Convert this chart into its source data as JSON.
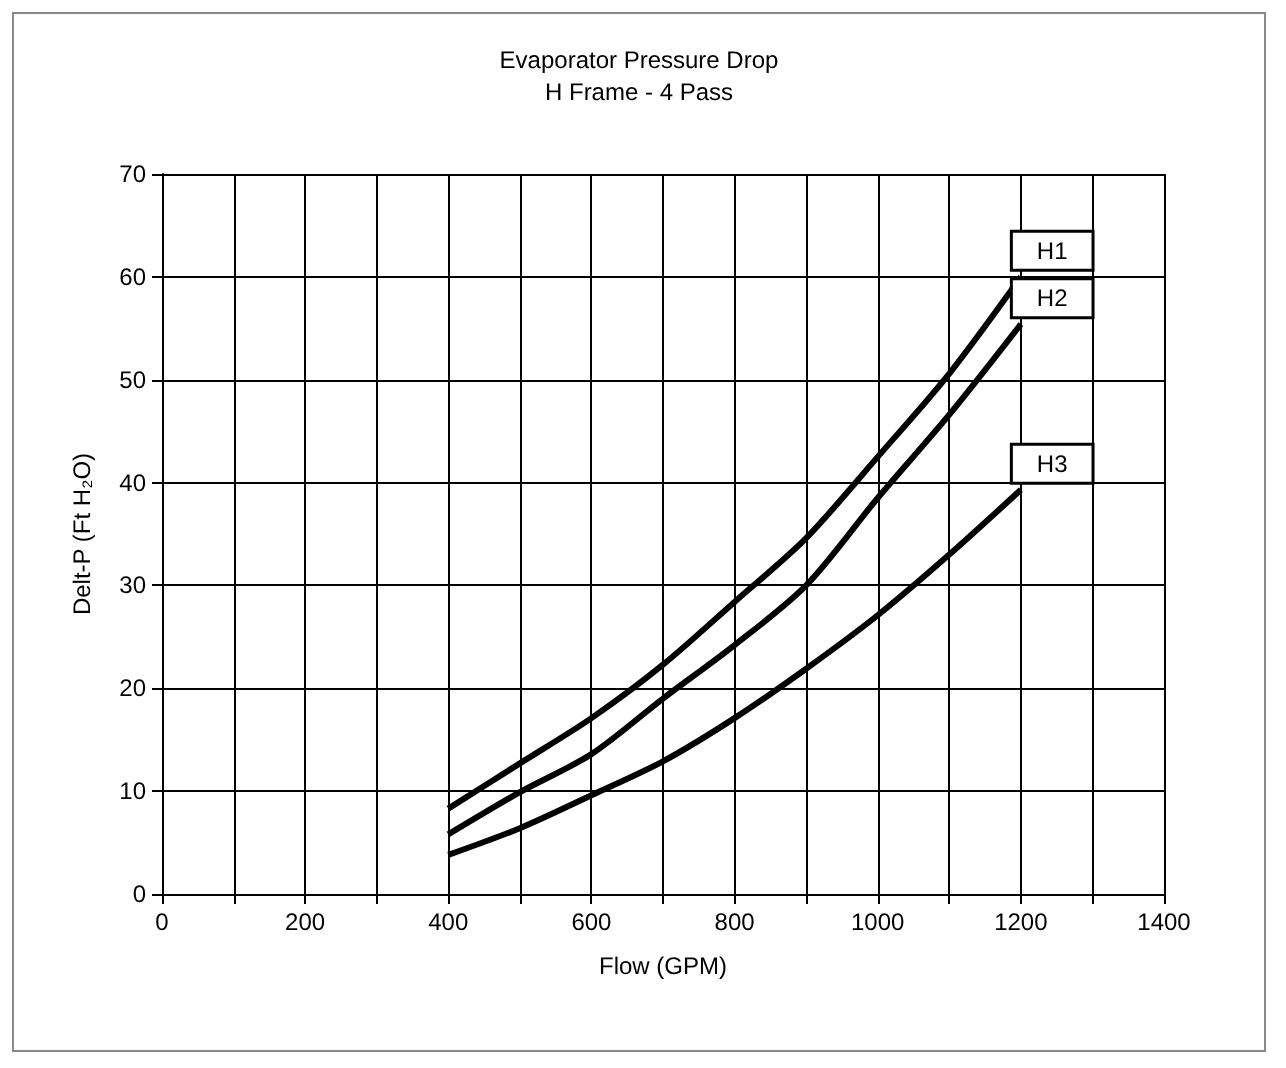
{
  "chart_data": {
    "type": "line",
    "title": "Evaporator Pressure Drop",
    "subtitle": "H Frame - 4 Pass",
    "xlabel": "Flow (GPM)",
    "ylabel": "Delt-P (Ft H₂O)",
    "x": [
      400,
      500,
      600,
      700,
      800,
      900,
      1000,
      1100,
      1200
    ],
    "series": [
      {
        "name": "H1",
        "color": "#000000",
        "values": [
          8.3,
          12.7,
          17.1,
          22.3,
          28.4,
          34.6,
          42.5,
          50.6,
          60
        ]
      },
      {
        "name": "H2",
        "color": "#000000",
        "values": [
          5.8,
          9.9,
          13.6,
          19,
          24.2,
          30,
          38.5,
          46.6,
          55.4
        ]
      },
      {
        "name": "H3",
        "color": "#000000",
        "values": [
          3.8,
          6.4,
          9.6,
          12.9,
          17.1,
          21.9,
          27.1,
          33,
          39.3
        ]
      }
    ],
    "xlim": [
      0,
      1400
    ],
    "xticks": [
      0,
      {
        "value": 100,
        "label": null
      },
      200,
      {
        "value": 300,
        "label": null
      },
      400,
      {
        "value": 500,
        "label": null
      },
      600,
      {
        "value": 700,
        "label": null
      },
      800,
      {
        "value": 900,
        "label": null
      },
      1000,
      {
        "value": 1100,
        "label": null
      },
      1200,
      {
        "value": 1300,
        "label": null
      },
      1400
    ],
    "ylim": [
      0,
      70
    ],
    "yticks": [
      0,
      10,
      20,
      30,
      40,
      50,
      60,
      70
    ],
    "grid": true,
    "legend": "right",
    "marker": "none",
    "line_style": "solid"
  }
}
